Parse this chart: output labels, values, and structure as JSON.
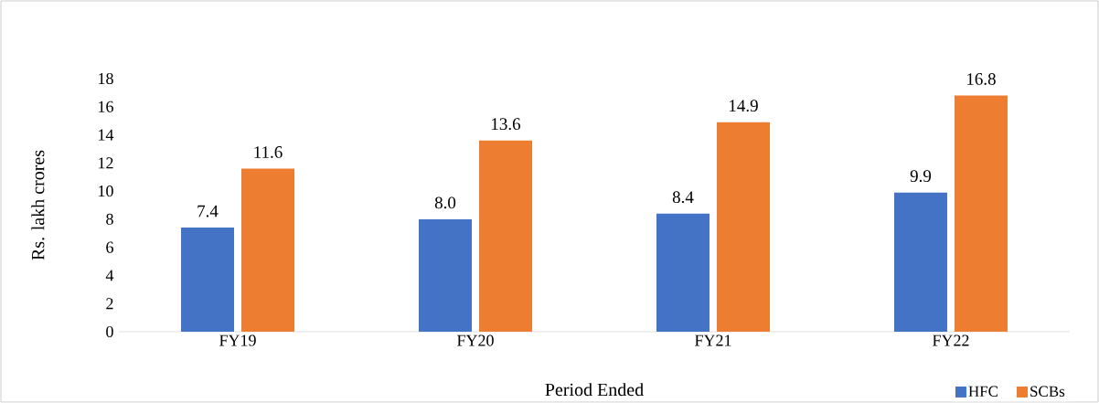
{
  "chart_data": {
    "type": "bar",
    "xlabel": "Period Ended",
    "ylabel": "Rs. lakh crores",
    "categories": [
      "FY19",
      "FY20",
      "FY21",
      "FY22"
    ],
    "series": [
      {
        "name": "HFC",
        "color": "#4472c4",
        "values": [
          7.4,
          8.0,
          8.4,
          9.9
        ],
        "value_labels": [
          "7.4",
          "8.0",
          "8.4",
          "9.9"
        ]
      },
      {
        "name": "SCBs",
        "color": "#ed7d31",
        "values": [
          11.6,
          13.6,
          14.9,
          16.8
        ],
        "value_labels": [
          "11.6",
          "13.6",
          "14.9",
          "16.8"
        ]
      }
    ],
    "ylim": [
      0,
      18
    ],
    "yticks": [
      0,
      2,
      4,
      6,
      8,
      10,
      12,
      14,
      16,
      18
    ],
    "legend": "bottom right"
  }
}
